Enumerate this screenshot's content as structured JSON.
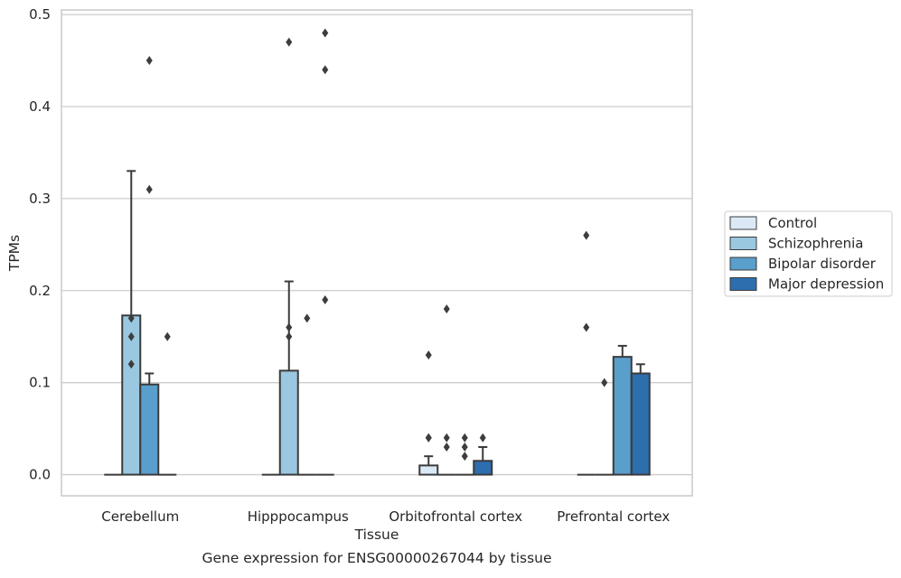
{
  "chart_data": {
    "type": "bar",
    "title": "",
    "caption": "Gene expression for ENSG00000267044 by tissue",
    "xlabel": "Tissue",
    "ylabel": "TPMs",
    "ylim": [
      -0.023,
      0.505
    ],
    "yticks": [
      "0.0",
      "0.1",
      "0.2",
      "0.3",
      "0.4",
      "0.5"
    ],
    "ytick_values": [
      0.0,
      0.1,
      0.2,
      0.3,
      0.4,
      0.5
    ],
    "grid": "horizontal",
    "legend_position": "right",
    "categories": [
      "Cerebellum",
      "Hipppocampus",
      "Orbitofrontal cortex",
      "Prefrontal cortex"
    ],
    "series": [
      {
        "name": "Control",
        "color": "#dbe9f6",
        "values": [
          0.0,
          0.0,
          0.01,
          0.0
        ],
        "error_upper": [
          null,
          null,
          0.02,
          null
        ],
        "outliers": [
          [],
          [],
          [
            0.04,
            0.04,
            0.13
          ],
          [
            0.26,
            0.16
          ]
        ]
      },
      {
        "name": "Schizophrenia",
        "color": "#9ac8e0",
        "values": [
          0.173,
          0.113,
          0.0,
          0.0
        ],
        "error_upper": [
          0.33,
          0.21,
          null,
          null
        ],
        "outliers": [
          [
            0.17,
            0.15,
            0.12
          ],
          [
            0.47,
            0.16,
            0.15
          ],
          [
            0.18,
            0.04,
            0.03
          ],
          [
            0.1
          ]
        ]
      },
      {
        "name": "Bipolar disorder",
        "color": "#5a9ecc",
        "values": [
          0.098,
          0.0,
          0.0,
          0.128
        ],
        "error_upper": [
          0.11,
          null,
          null,
          0.14
        ],
        "outliers": [
          [
            0.45,
            0.31
          ],
          [
            0.17
          ],
          [
            0.04,
            0.03,
            0.02
          ],
          []
        ]
      },
      {
        "name": "Major depression",
        "color": "#2d6eae",
        "values": [
          0.0,
          0.0,
          0.015,
          0.11
        ],
        "error_upper": [
          null,
          null,
          0.03,
          0.12
        ],
        "outliers": [
          [
            0.15
          ],
          [
            0.48,
            0.44,
            0.19
          ],
          [
            0.04
          ],
          []
        ]
      }
    ]
  }
}
